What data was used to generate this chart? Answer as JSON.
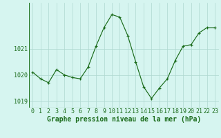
{
  "x": [
    0,
    1,
    2,
    3,
    4,
    5,
    6,
    7,
    8,
    9,
    10,
    11,
    12,
    13,
    14,
    15,
    16,
    17,
    18,
    19,
    20,
    21,
    22,
    23
  ],
  "y": [
    1020.1,
    1019.85,
    1019.7,
    1020.2,
    1020.0,
    1019.9,
    1019.85,
    1020.3,
    1021.1,
    1021.8,
    1022.3,
    1022.2,
    1021.5,
    1020.5,
    1019.55,
    1019.1,
    1019.5,
    1019.85,
    1020.55,
    1021.1,
    1021.15,
    1021.6,
    1021.8,
    1021.8
  ],
  "title": "Graphe pression niveau de la mer (hPa)",
  "xlim": [
    -0.5,
    23.5
  ],
  "ylim": [
    1018.75,
    1022.75
  ],
  "yticks": [
    1019,
    1020,
    1021
  ],
  "xtick_labels": [
    "0",
    "1",
    "2",
    "3",
    "4",
    "5",
    "6",
    "7",
    "8",
    "9",
    "10",
    "11",
    "12",
    "13",
    "14",
    "15",
    "16",
    "17",
    "18",
    "19",
    "20",
    "21",
    "22",
    "23"
  ],
  "line_color": "#1a6b1a",
  "marker_color": "#1a6b1a",
  "bg_color": "#d6f5f0",
  "grid_color": "#aed8d0",
  "title_color": "#1a6b1a",
  "title_fontsize": 7.0,
  "tick_fontsize": 6.0,
  "tick_color": "#1a6b1a",
  "axis_color": "#2a7a2a"
}
